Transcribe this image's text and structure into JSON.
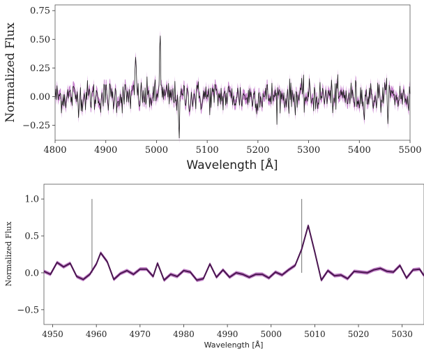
{
  "chart_data": [
    {
      "type": "line",
      "xlabel": "Wavelength [Å]",
      "ylabel": "Normalized Flux",
      "xlim": [
        4800,
        5500
      ],
      "ylim": [
        -0.38,
        0.8
      ],
      "xticks": [
        "4800",
        "4900",
        "5000",
        "5100",
        "5200",
        "5300",
        "5400",
        "5500"
      ],
      "yticks": [
        "−0.25",
        "0.00",
        "0.25",
        "0.50",
        "0.75"
      ],
      "yticks_values": [
        -0.25,
        0.0,
        0.25,
        0.5,
        0.75
      ],
      "xticks_values": [
        4800,
        4900,
        5000,
        5100,
        5200,
        5300,
        5400,
        5500
      ],
      "grid": false,
      "colors": {
        "line": "#1a1a1a",
        "band": "#c070c8"
      },
      "noise_sigma": 0.07,
      "features": [
        {
          "x": 4959,
          "peak": 0.37
        },
        {
          "x": 5007,
          "peak": 0.62
        },
        {
          "x": 5045,
          "peak": -0.28
        }
      ]
    },
    {
      "type": "line",
      "xlabel": "Wavelength [Å]",
      "ylabel": "Normalized Flux",
      "xlim": [
        4948,
        5035
      ],
      "ylim": [
        -0.7,
        1.2
      ],
      "xticks": [
        "4950",
        "4960",
        "4970",
        "4980",
        "4990",
        "5000",
        "5010",
        "5020",
        "5030"
      ],
      "xticks_values": [
        4950,
        4960,
        4970,
        4980,
        4990,
        5000,
        5010,
        5020,
        5030
      ],
      "yticks": [
        "−0.5",
        "0.0",
        "0.5",
        "1.0"
      ],
      "yticks_values": [
        -0.5,
        0.0,
        0.5,
        1.0
      ],
      "grid": false,
      "colors": {
        "line": "#4a1550",
        "band": "#b060b8",
        "marker": "#888888"
      },
      "markers": [
        {
          "x": 4959,
          "y0": 0.0,
          "y1": 1.0
        },
        {
          "x": 5007,
          "y0": 0.0,
          "y1": 1.0
        }
      ],
      "x": [
        4948,
        4949.5,
        4951,
        4952.5,
        4954,
        4955.5,
        4957,
        4958.5,
        4960,
        4961,
        4962.5,
        4964,
        4965.5,
        4967,
        4968.5,
        4970,
        4971.5,
        4973,
        4974,
        4975.5,
        4977,
        4978.5,
        4980,
        4981.5,
        4983,
        4984.5,
        4986,
        4987.5,
        4989,
        4990.5,
        4992,
        4993.5,
        4995,
        4996.5,
        4998,
        4999.5,
        5001,
        5002.5,
        5004,
        5005.5,
        5007,
        5008.5,
        5010,
        5011.5,
        5013,
        5014.5,
        5016,
        5017.5,
        5019,
        5020.5,
        5022,
        5023.5,
        5025,
        5026.5,
        5028,
        5029.5,
        5031,
        5032.5,
        5034,
        5035
      ],
      "y": [
        0.02,
        -0.02,
        0.14,
        0.08,
        0.13,
        -0.05,
        -0.09,
        -0.02,
        0.12,
        0.27,
        0.15,
        -0.09,
        -0.01,
        0.03,
        -0.02,
        0.05,
        0.05,
        -0.05,
        0.13,
        -0.1,
        -0.02,
        -0.05,
        0.03,
        0.01,
        -0.1,
        -0.08,
        0.12,
        -0.06,
        0.04,
        -0.06,
        0.0,
        -0.02,
        -0.06,
        -0.02,
        -0.02,
        -0.07,
        0.01,
        -0.03,
        0.04,
        0.1,
        0.32,
        0.64,
        0.28,
        -0.1,
        0.03,
        -0.04,
        -0.03,
        -0.08,
        0.02,
        0.01,
        0.0,
        0.04,
        0.06,
        0.02,
        0.01,
        0.1,
        -0.07,
        0.04,
        0.05,
        -0.04
      ],
      "band_halfwidth": 0.025
    }
  ]
}
